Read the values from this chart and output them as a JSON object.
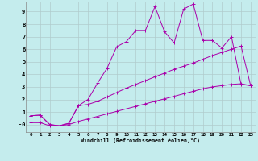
{
  "background_color": "#c4eced",
  "grid_color": "#b0cccc",
  "line_color": "#aa00aa",
  "xlim": [
    -0.5,
    23.5
  ],
  "ylim": [
    -0.6,
    9.8
  ],
  "xticks": [
    0,
    1,
    2,
    3,
    4,
    5,
    6,
    7,
    8,
    9,
    10,
    11,
    12,
    13,
    14,
    15,
    16,
    17,
    18,
    19,
    20,
    21,
    22,
    23
  ],
  "yticks": [
    0,
    1,
    2,
    3,
    4,
    5,
    6,
    7,
    8,
    9
  ],
  "ytick_labels": [
    "-0",
    "1",
    "2",
    "3",
    "4",
    "5",
    "6",
    "7",
    "8",
    "9"
  ],
  "xlabel": "Windchill (Refroidissement éolien,°C)",
  "line1_x": [
    0,
    1,
    2,
    3,
    4,
    5,
    6,
    7,
    8,
    9,
    10,
    11,
    12,
    13,
    14,
    15,
    16,
    17,
    18,
    19,
    20,
    21,
    22,
    23
  ],
  "line1_y": [
    0.7,
    0.75,
    0.0,
    -0.1,
    0.1,
    1.5,
    2.0,
    3.3,
    4.5,
    6.2,
    6.6,
    7.5,
    7.5,
    9.4,
    7.4,
    6.5,
    9.2,
    9.6,
    6.7,
    6.7,
    6.1,
    7.0,
    3.2,
    3.1
  ],
  "line2_x": [
    0,
    1,
    2,
    3,
    4,
    5,
    6,
    7,
    8,
    9,
    10,
    11,
    12,
    13,
    14,
    15,
    16,
    17,
    18,
    19,
    20,
    21,
    22,
    23
  ],
  "line2_y": [
    0.7,
    0.75,
    0.0,
    -0.1,
    0.1,
    1.5,
    1.6,
    1.85,
    2.2,
    2.55,
    2.9,
    3.2,
    3.5,
    3.8,
    4.1,
    4.4,
    4.65,
    4.9,
    5.2,
    5.5,
    5.75,
    6.0,
    6.25,
    3.1
  ],
  "line3_x": [
    0,
    1,
    2,
    3,
    4,
    5,
    6,
    7,
    8,
    9,
    10,
    11,
    12,
    13,
    14,
    15,
    16,
    17,
    18,
    19,
    20,
    21,
    22,
    23
  ],
  "line3_y": [
    0.15,
    0.15,
    -0.1,
    -0.1,
    0.0,
    0.25,
    0.45,
    0.65,
    0.85,
    1.05,
    1.25,
    1.45,
    1.65,
    1.85,
    2.05,
    2.25,
    2.45,
    2.65,
    2.85,
    3.0,
    3.1,
    3.2,
    3.25,
    3.1
  ]
}
